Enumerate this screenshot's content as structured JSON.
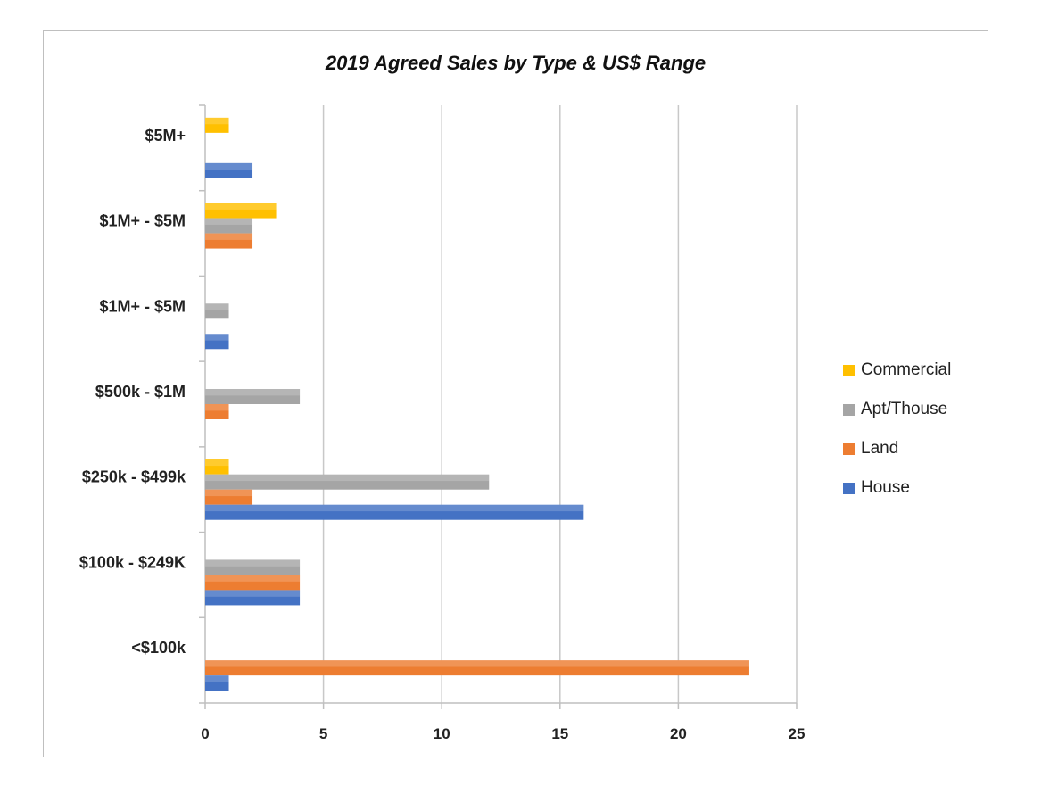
{
  "chart_data": {
    "type": "bar",
    "orientation": "horizontal",
    "title": "2019 Agreed Sales by Type & US$ Range",
    "xlabel": "",
    "ylabel": "",
    "xlim": [
      0,
      25
    ],
    "x_ticks": [
      "0",
      "5",
      "10",
      "15",
      "20",
      "25"
    ],
    "grid": true,
    "legend_position": "right",
    "categories": [
      "$5M+",
      "$1M+ - $5M",
      "$1M+ - $5M",
      "$500k - $1M",
      "$250k - $499k",
      "$100k - $249K",
      "<$100k"
    ],
    "series": [
      {
        "name": "Commercial",
        "color": "#FFC000",
        "values": [
          1,
          3,
          0,
          0,
          1,
          0,
          0
        ]
      },
      {
        "name": "Apt/Thouse",
        "color": "#A5A5A5",
        "values": [
          0,
          2,
          1,
          4,
          12,
          4,
          0
        ]
      },
      {
        "name": "Land",
        "color": "#ED7D31",
        "values": [
          0,
          2,
          0,
          1,
          2,
          4,
          23
        ]
      },
      {
        "name": "House",
        "color": "#4472C4",
        "values": [
          2,
          0,
          1,
          0,
          16,
          4,
          1
        ]
      }
    ]
  }
}
